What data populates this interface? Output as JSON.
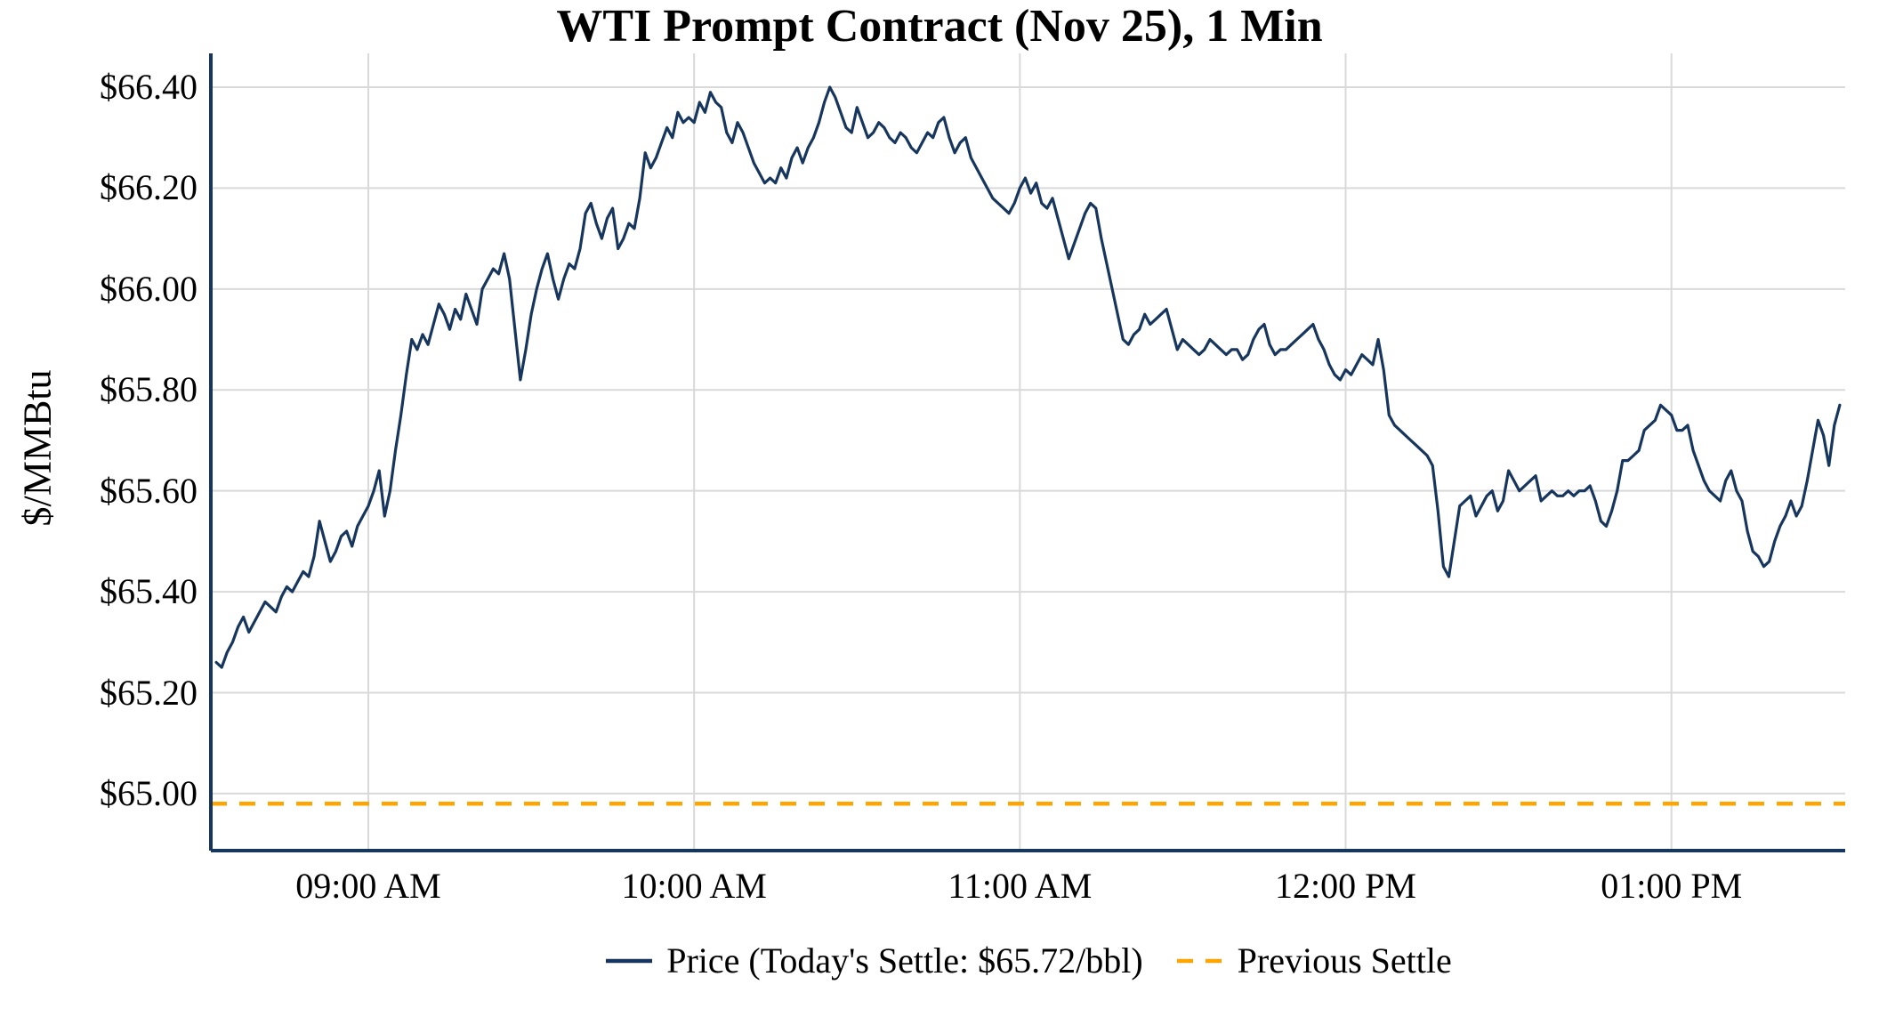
{
  "chart_data": {
    "type": "line",
    "title": "WTI Prompt Contract (Nov 25), 1 Min",
    "ylabel": "$/MMBtu",
    "x_unit": "minutes after 08:30 AM",
    "xlim": [
      1,
      302
    ],
    "ylim": [
      64.887,
      66.467
    ],
    "grid": true,
    "legend_position": "bottom-center",
    "todays_settle": 65.72,
    "colors": {
      "price_line": "#17365d",
      "previous_settle_line": "#FFA500",
      "grid": "#d9d9d9",
      "axis": "#17365d",
      "text": "#000000"
    },
    "x_ticks": [
      {
        "t": 30,
        "label": "09:00 AM"
      },
      {
        "t": 90,
        "label": "10:00 AM"
      },
      {
        "t": 150,
        "label": "11:00 AM"
      },
      {
        "t": 210,
        "label": "12:00 PM"
      },
      {
        "t": 270,
        "label": "01:00 PM"
      }
    ],
    "y_ticks": [
      {
        "value": 65.0,
        "label": "$65.00"
      },
      {
        "value": 65.2,
        "label": "$65.20"
      },
      {
        "value": 65.4,
        "label": "$65.40"
      },
      {
        "value": 65.6,
        "label": "$65.60"
      },
      {
        "value": 65.8,
        "label": "$65.80"
      },
      {
        "value": 66.0,
        "label": "$66.00"
      },
      {
        "value": 66.2,
        "label": "$66.20"
      },
      {
        "value": 66.4,
        "label": "$66.40"
      }
    ],
    "reference_line": {
      "name": "Previous Settle",
      "value": 64.98,
      "style": "dashed"
    },
    "series": [
      {
        "name": "Price",
        "t_start": 2,
        "step_minutes": 1,
        "values": [
          65.26,
          65.25,
          65.28,
          65.3,
          65.33,
          65.35,
          65.32,
          65.34,
          65.36,
          65.38,
          65.37,
          65.36,
          65.39,
          65.41,
          65.4,
          65.42,
          65.44,
          65.43,
          65.47,
          65.54,
          65.5,
          65.46,
          65.48,
          65.51,
          65.52,
          65.49,
          65.53,
          65.55,
          65.57,
          65.6,
          65.64,
          65.55,
          65.6,
          65.68,
          65.75,
          65.83,
          65.9,
          65.88,
          65.91,
          65.89,
          65.93,
          65.97,
          65.95,
          65.92,
          65.96,
          65.94,
          65.99,
          65.96,
          65.93,
          66.0,
          66.02,
          66.04,
          66.03,
          66.07,
          66.02,
          65.92,
          65.82,
          65.88,
          65.95,
          66.0,
          66.04,
          66.07,
          66.02,
          65.98,
          66.02,
          66.05,
          66.04,
          66.08,
          66.15,
          66.17,
          66.13,
          66.1,
          66.14,
          66.16,
          66.08,
          66.1,
          66.13,
          66.12,
          66.18,
          66.27,
          66.24,
          66.26,
          66.29,
          66.32,
          66.3,
          66.35,
          66.33,
          66.34,
          66.33,
          66.37,
          66.35,
          66.39,
          66.37,
          66.36,
          66.31,
          66.29,
          66.33,
          66.31,
          66.28,
          66.25,
          66.23,
          66.21,
          66.22,
          66.21,
          66.24,
          66.22,
          66.26,
          66.28,
          66.25,
          66.28,
          66.3,
          66.33,
          66.37,
          66.4,
          66.38,
          66.35,
          66.32,
          66.31,
          66.36,
          66.33,
          66.3,
          66.31,
          66.33,
          66.32,
          66.3,
          66.29,
          66.31,
          66.3,
          66.28,
          66.27,
          66.29,
          66.31,
          66.3,
          66.33,
          66.34,
          66.3,
          66.27,
          66.29,
          66.3,
          66.26,
          66.24,
          66.22,
          66.2,
          66.18,
          66.17,
          66.16,
          66.15,
          66.17,
          66.2,
          66.22,
          66.19,
          66.21,
          66.17,
          66.16,
          66.18,
          66.14,
          66.1,
          66.06,
          66.09,
          66.12,
          66.15,
          66.17,
          66.16,
          66.1,
          66.05,
          66.0,
          65.95,
          65.9,
          65.89,
          65.91,
          65.92,
          65.95,
          65.93,
          65.94,
          65.95,
          65.96,
          65.92,
          65.88,
          65.9,
          65.89,
          65.88,
          65.87,
          65.88,
          65.9,
          65.89,
          65.88,
          65.87,
          65.88,
          65.88,
          65.86,
          65.87,
          65.9,
          65.92,
          65.93,
          65.89,
          65.87,
          65.88,
          65.88,
          65.89,
          65.9,
          65.91,
          65.92,
          65.93,
          65.9,
          65.88,
          65.85,
          65.83,
          65.82,
          65.84,
          65.83,
          65.85,
          65.87,
          65.86,
          65.85,
          65.9,
          65.84,
          65.75,
          65.73,
          65.72,
          65.71,
          65.7,
          65.69,
          65.68,
          65.67,
          65.65,
          65.56,
          65.45,
          65.43,
          65.5,
          65.57,
          65.58,
          65.59,
          65.55,
          65.57,
          65.59,
          65.6,
          65.56,
          65.58,
          65.64,
          65.62,
          65.6,
          65.61,
          65.62,
          65.63,
          65.58,
          65.59,
          65.6,
          65.59,
          65.59,
          65.6,
          65.59,
          65.6,
          65.6,
          65.61,
          65.58,
          65.54,
          65.53,
          65.56,
          65.6,
          65.66,
          65.66,
          65.67,
          65.68,
          65.72,
          65.73,
          65.74,
          65.77,
          65.76,
          65.75,
          65.72,
          65.72,
          65.73,
          65.68,
          65.65,
          65.62,
          65.6,
          65.59,
          65.58,
          65.62,
          65.64,
          65.6,
          65.58,
          65.52,
          65.48,
          65.47,
          65.45,
          65.46,
          65.5,
          65.53,
          65.55,
          65.58,
          65.55,
          65.57,
          65.62,
          65.68,
          65.74,
          65.71,
          65.65,
          65.73,
          65.77
        ]
      }
    ],
    "legend": [
      {
        "label": "Price (Today's Settle: $65.72/bbl)",
        "style": "solid",
        "color": "#17365d"
      },
      {
        "label": "Previous Settle",
        "style": "dashed",
        "color": "#FFA500"
      }
    ]
  }
}
